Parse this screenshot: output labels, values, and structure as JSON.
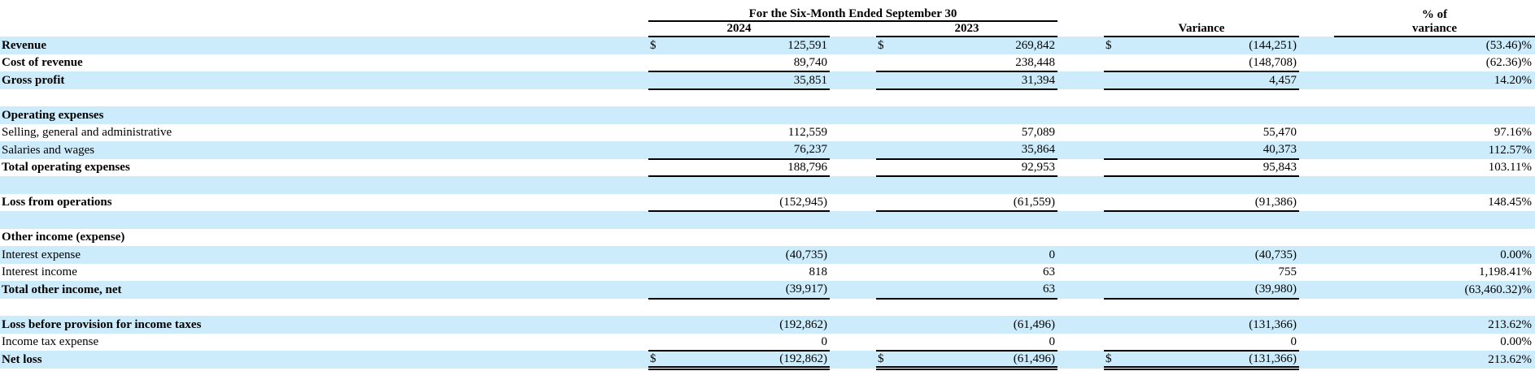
{
  "table": {
    "currency_symbol": "$",
    "colors": {
      "stripe": "#ccecfc",
      "text": "#000000"
    },
    "headers": {
      "period_span": "For the Six-Month Ended September 30",
      "pct_line1": "% of",
      "pct_line2": "variance",
      "col_2024": "2024",
      "col_2023": "2023",
      "col_variance": "Variance"
    },
    "rows": [
      {
        "type": "data",
        "label": "Revenue",
        "bold": true,
        "stripe": true,
        "dollar": true,
        "border": "none",
        "v1": "125,591",
        "v2": "269,842",
        "v3": "(144,251)",
        "v4": "(53.46)%"
      },
      {
        "type": "data",
        "label": "Cost of revenue",
        "bold": true,
        "stripe": false,
        "dollar": false,
        "border": "single",
        "v1": "89,740",
        "v2": "238,448",
        "v3": "(148,708)",
        "v4": "(62.36)%"
      },
      {
        "type": "data",
        "label": "Gross profit",
        "bold": true,
        "stripe": true,
        "dollar": false,
        "border": "single",
        "v1": "35,851",
        "v2": "31,394",
        "v3": "4,457",
        "v4": "14.20%"
      },
      {
        "type": "blank",
        "label": "",
        "stripe": false
      },
      {
        "type": "section",
        "label": "Operating expenses",
        "bold": true,
        "stripe": true
      },
      {
        "type": "data",
        "label": "Selling, general and administrative",
        "bold": false,
        "stripe": false,
        "dollar": false,
        "border": "none",
        "v1": "112,559",
        "v2": "57,089",
        "v3": "55,470",
        "v4": "97.16%"
      },
      {
        "type": "data",
        "label": "Salaries and wages",
        "bold": false,
        "stripe": true,
        "dollar": false,
        "border": "single",
        "v1": "76,237",
        "v2": "35,864",
        "v3": "40,373",
        "v4": "112.57%"
      },
      {
        "type": "data",
        "label": "Total operating expenses",
        "bold": true,
        "stripe": false,
        "dollar": false,
        "border": "single",
        "v1": "188,796",
        "v2": "92,953",
        "v3": "95,843",
        "v4": "103.11%"
      },
      {
        "type": "blank",
        "label": "",
        "stripe": true
      },
      {
        "type": "data",
        "label": "Loss from operations",
        "bold": true,
        "stripe": false,
        "dollar": false,
        "border": "single",
        "v1": "(152,945)",
        "v2": "(61,559)",
        "v3": "(91,386)",
        "v4": "148.45%"
      },
      {
        "type": "blank",
        "label": "",
        "stripe": true
      },
      {
        "type": "section",
        "label": "Other income (expense)",
        "bold": true,
        "stripe": false
      },
      {
        "type": "data",
        "label": "Interest expense",
        "bold": false,
        "stripe": true,
        "dollar": false,
        "border": "none",
        "v1": "(40,735)",
        "v2": "0",
        "v3": "(40,735)",
        "v4": "0.00%"
      },
      {
        "type": "data",
        "label": "Interest income",
        "bold": false,
        "stripe": false,
        "dollar": false,
        "border": "none",
        "v1": "818",
        "v2": "63",
        "v3": "755",
        "v4": "1,198.41%"
      },
      {
        "type": "data",
        "label": "Total other income, net",
        "bold": true,
        "stripe": true,
        "dollar": false,
        "border": "single",
        "v1": "(39,917)",
        "v2": "63",
        "v3": "(39,980)",
        "v4": "(63,460.32)%"
      },
      {
        "type": "blank",
        "label": "",
        "stripe": false
      },
      {
        "type": "data",
        "label": "Loss before provision for income taxes",
        "bold": true,
        "stripe": true,
        "dollar": false,
        "border": "none",
        "v1": "(192,862)",
        "v2": "(61,496)",
        "v3": "(131,366)",
        "v4": "213.62%"
      },
      {
        "type": "data",
        "label": "Income tax expense",
        "bold": false,
        "stripe": false,
        "dollar": false,
        "border": "single",
        "v1": "0",
        "v2": "0",
        "v3": "0",
        "v4": "0.00%"
      },
      {
        "type": "data",
        "label": "Net loss",
        "bold": true,
        "stripe": true,
        "dollar": true,
        "border": "double",
        "v1": "(192,862)",
        "v2": "(61,496)",
        "v3": "(131,366)",
        "v4": "213.62%"
      }
    ]
  }
}
